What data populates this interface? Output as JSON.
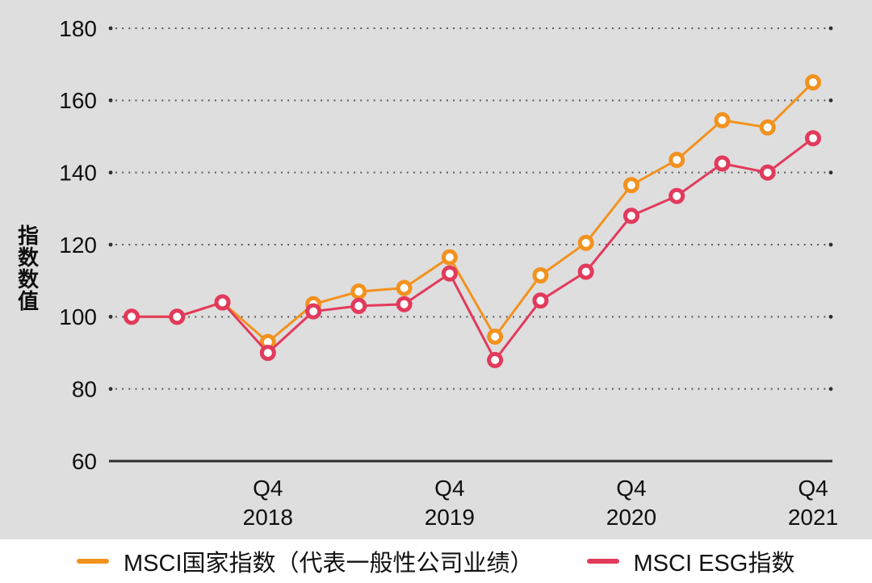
{
  "chart_data": {
    "type": "line",
    "title": "",
    "xlabel": "",
    "ylabel": "指数数值",
    "ylim": [
      60,
      180
    ],
    "yticks": [
      180,
      160,
      140,
      120,
      100,
      80,
      60
    ],
    "grid": "dotted horizontal lines at each y tick, solid baseline at 60",
    "legend_position": "bottom",
    "categories": [
      "2018 Q1",
      "2018 Q2",
      "2018 Q3",
      "2018 Q4",
      "2019 Q1",
      "2019 Q2",
      "2019 Q3",
      "2019 Q4",
      "2020 Q1",
      "2020 Q2",
      "2020 Q3",
      "2020 Q4",
      "2021 Q1",
      "2021 Q2",
      "2021 Q3",
      "2021 Q4"
    ],
    "x_ticks": [
      {
        "index": 3,
        "line1": "Q4",
        "line2": "2018"
      },
      {
        "index": 7,
        "line1": "Q4",
        "line2": "2019"
      },
      {
        "index": 11,
        "line1": "Q4",
        "line2": "2020"
      },
      {
        "index": 15,
        "line1": "Q4",
        "line2": "2021"
      }
    ],
    "series": [
      {
        "name": "MSCI国家指数（代表一般性公司业绩）",
        "color": "#F2921E",
        "values": [
          100,
          100,
          104,
          93,
          103.5,
          107,
          108,
          116.5,
          94.5,
          111.5,
          120.5,
          136.5,
          143.5,
          154.5,
          152.5,
          165
        ]
      },
      {
        "name": "MSCI ESG指数",
        "color": "#E23A5C",
        "values": [
          100,
          100,
          104,
          90,
          101.5,
          103,
          103.5,
          112,
          88,
          104.5,
          112.5,
          128,
          133.5,
          142.5,
          140,
          149.5
        ]
      }
    ],
    "colors": {
      "panel_background": "#dedede",
      "page_background": "#ffffff",
      "grid_dots": "#4d4d4d",
      "axis_line": "#2e2e2e",
      "text": "#0f0f0f",
      "marker_fill": "#ffffff"
    }
  }
}
